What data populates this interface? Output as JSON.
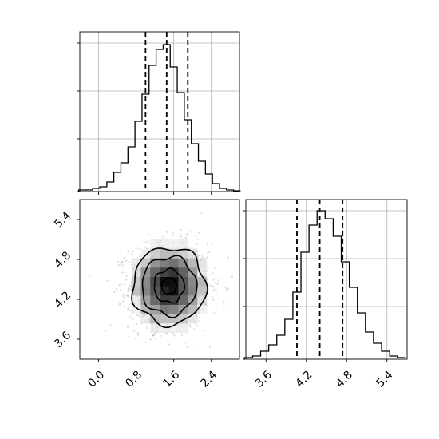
{
  "chart_data": [
    {
      "type": "histogram",
      "panel": "marginal x (top-left)",
      "x": [
        -0.35,
        -0.2,
        -0.05,
        0.1,
        0.25,
        0.4,
        0.55,
        0.7,
        0.85,
        1.0,
        1.15,
        1.3,
        1.45,
        1.6,
        1.75,
        1.9,
        2.05,
        2.2,
        2.35,
        2.5,
        2.65,
        2.8,
        2.95
      ],
      "values": [
        0.01,
        0.01,
        0.02,
        0.03,
        0.06,
        0.12,
        0.18,
        0.28,
        0.44,
        0.61,
        0.79,
        0.89,
        0.92,
        0.78,
        0.62,
        0.45,
        0.3,
        0.19,
        0.11,
        0.05,
        0.02,
        0.01,
        0.005
      ],
      "xlim": [
        -0.4,
        3.0
      ],
      "ylim": [
        0,
        1.0
      ],
      "quantile_lines": [
        1.0,
        1.45,
        1.9
      ],
      "grid": true
    },
    {
      "type": "scatter",
      "panel": "2D density (bottom-left)",
      "center": [
        1.5,
        4.4
      ],
      "sigma": [
        0.42,
        0.32
      ],
      "n_points": 1600,
      "xlim": [
        -0.4,
        3.0
      ],
      "ylim": [
        3.3,
        5.7
      ],
      "contour_levels": [
        {
          "rx": 0.16,
          "ry": 0.12
        },
        {
          "rx": 0.32,
          "ry": 0.25
        },
        {
          "rx": 0.58,
          "ry": 0.44
        },
        {
          "rx": 0.78,
          "ry": 0.58
        }
      ],
      "xticks": [
        "0.0",
        "0.8",
        "1.6",
        "2.4"
      ],
      "xtick_values": [
        0.0,
        0.8,
        1.6,
        2.4
      ],
      "yticks": [
        "3.6",
        "4.2",
        "4.8",
        "5.4"
      ],
      "ytick_values": [
        3.6,
        4.2,
        4.8,
        5.4
      ]
    },
    {
      "type": "histogram",
      "panel": "marginal y (bottom-right)",
      "x": [
        3.34,
        3.46,
        3.58,
        3.7,
        3.82,
        3.94,
        4.06,
        4.18,
        4.3,
        4.42,
        4.54,
        4.66,
        4.78,
        4.9,
        5.02,
        5.14,
        5.26,
        5.38,
        5.5,
        5.62
      ],
      "values": [
        0.01,
        0.02,
        0.05,
        0.09,
        0.15,
        0.25,
        0.42,
        0.67,
        0.84,
        0.93,
        0.88,
        0.77,
        0.61,
        0.45,
        0.29,
        0.17,
        0.1,
        0.05,
        0.02,
        0.01
      ],
      "xlim": [
        3.3,
        5.7
      ],
      "ylim": [
        0,
        1.0
      ],
      "quantile_lines": [
        4.06,
        4.4,
        4.74
      ],
      "xticks": [
        "3.6",
        "4.2",
        "4.8",
        "5.4"
      ],
      "xtick_values": [
        3.6,
        4.2,
        4.8,
        5.4
      ],
      "grid": true
    }
  ]
}
